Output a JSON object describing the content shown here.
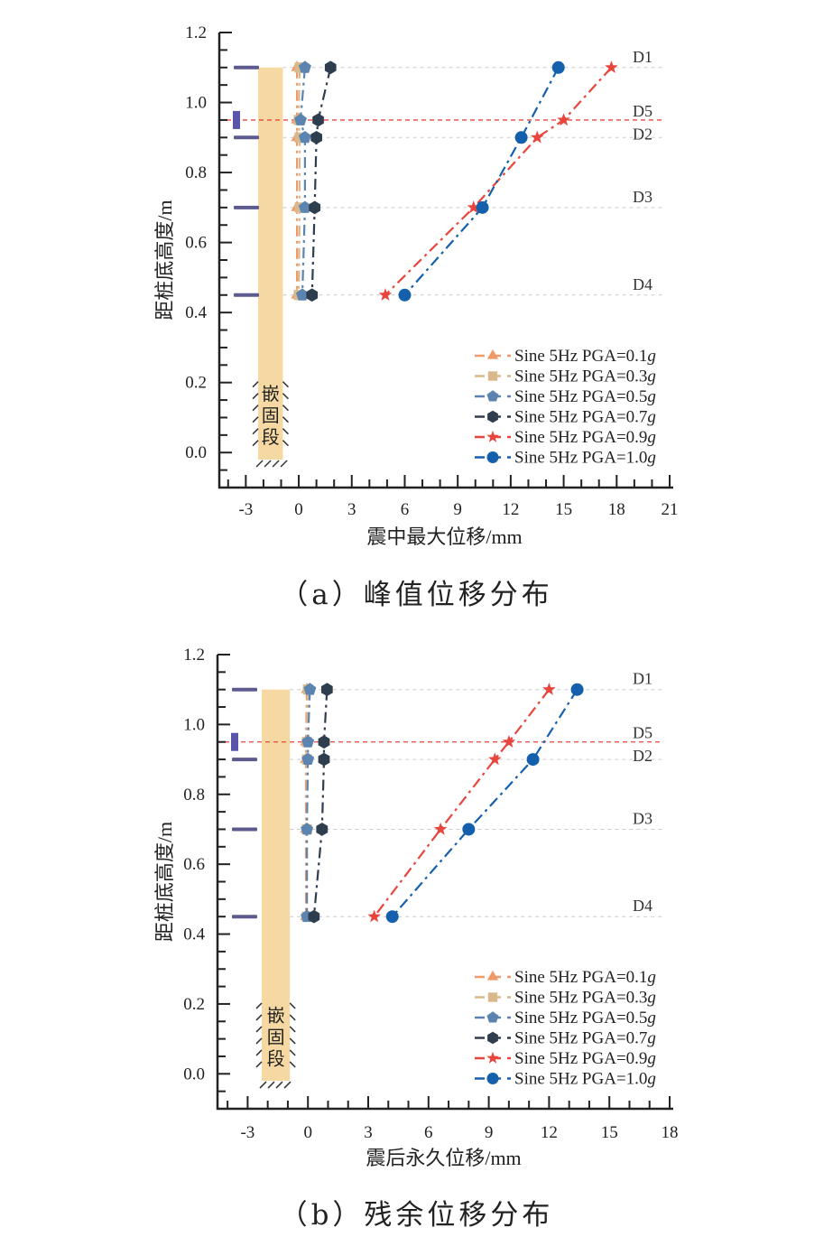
{
  "chart_data": [
    {
      "type": "line",
      "caption": "（a）峰值位移分布",
      "xlabel": "震中最大位移/mm",
      "ylabel": "距桩底高度/m",
      "xlim": [
        -4.5,
        21
      ],
      "ylim": [
        -0.1,
        1.2
      ],
      "xticks": [
        -3,
        0,
        3,
        6,
        9,
        12,
        15,
        18,
        21
      ],
      "yticks": [
        0.0,
        0.2,
        0.4,
        0.6,
        0.8,
        1.0,
        1.2
      ],
      "ytick_labels": [
        "0.0",
        "0.2",
        "0.4",
        "0.6",
        "0.8",
        "1.0",
        "1.2"
      ],
      "heights": [
        1.1,
        0.95,
        0.9,
        0.7,
        0.45
      ],
      "sensors": [
        {
          "name": "D1",
          "y": 1.1
        },
        {
          "name": "D5",
          "y": 0.95
        },
        {
          "name": "D2",
          "y": 0.9
        },
        {
          "name": "D3",
          "y": 0.7
        },
        {
          "name": "D4",
          "y": 0.45
        }
      ],
      "embed_label": [
        "嵌",
        "固",
        "段"
      ],
      "legend_position": "bottom-right",
      "series": [
        {
          "name": "Sine 5Hz PGA=0.1",
          "unit": "g",
          "marker": "triangle",
          "color": "#EE9A6B",
          "values": [
            -0.1,
            -0.1,
            -0.1,
            -0.1,
            -0.1
          ]
        },
        {
          "name": "Sine 5Hz PGA=0.3",
          "unit": "g",
          "marker": "square",
          "color": "#D9B98C",
          "values": [
            0.05,
            0.0,
            0.05,
            0.05,
            0.0
          ]
        },
        {
          "name": "Sine 5Hz PGA=0.5",
          "unit": "g",
          "marker": "pentagon",
          "color": "#5B84B1",
          "values": [
            0.35,
            0.1,
            0.35,
            0.35,
            0.2
          ]
        },
        {
          "name": "Sine 5Hz PGA=0.7",
          "unit": "g",
          "marker": "hexagon",
          "color": "#2F3E4E",
          "values": [
            1.8,
            1.1,
            1.0,
            0.9,
            0.75
          ]
        },
        {
          "name": "Sine 5Hz PGA=0.9",
          "unit": "g",
          "marker": "star",
          "color": "#E8453C",
          "values": [
            17.7,
            15.0,
            13.5,
            9.9,
            4.9
          ]
        },
        {
          "name": "Sine 5Hz PGA=1.0",
          "unit": "g",
          "marker": "circle",
          "color": "#1560AC",
          "values": [
            14.7,
            null,
            12.6,
            10.4,
            6.0
          ]
        }
      ]
    },
    {
      "type": "line",
      "caption": "（b）残余位移分布",
      "xlabel": "震后永久位移/mm",
      "ylabel": "距桩底高度/m",
      "xlim": [
        -4.5,
        18
      ],
      "ylim": [
        -0.1,
        1.2
      ],
      "xticks": [
        -3,
        0,
        3,
        6,
        9,
        12,
        15,
        18
      ],
      "yticks": [
        0.0,
        0.2,
        0.4,
        0.6,
        0.8,
        1.0,
        1.2
      ],
      "ytick_labels": [
        "0.0",
        "0.2",
        "0.4",
        "0.6",
        "0.8",
        "1.0",
        "1.2"
      ],
      "heights": [
        1.1,
        0.95,
        0.9,
        0.7,
        0.45
      ],
      "sensors": [
        {
          "name": "D1",
          "y": 1.1
        },
        {
          "name": "D5",
          "y": 0.95
        },
        {
          "name": "D2",
          "y": 0.9
        },
        {
          "name": "D3",
          "y": 0.7
        },
        {
          "name": "D4",
          "y": 0.45
        }
      ],
      "embed_label": [
        "嵌",
        "固",
        "段"
      ],
      "legend_position": "bottom-right",
      "series": [
        {
          "name": "Sine 5Hz PGA=0.1",
          "unit": "g",
          "marker": "triangle",
          "color": "#EE9A6B",
          "values": [
            -0.05,
            -0.1,
            -0.1,
            -0.1,
            -0.1
          ]
        },
        {
          "name": "Sine 5Hz PGA=0.3",
          "unit": "g",
          "marker": "square",
          "color": "#D9B98C",
          "values": [
            0.0,
            -0.05,
            -0.05,
            -0.05,
            -0.05
          ]
        },
        {
          "name": "Sine 5Hz PGA=0.5",
          "unit": "g",
          "marker": "pentagon",
          "color": "#5B84B1",
          "values": [
            0.1,
            0.0,
            0.0,
            -0.05,
            -0.05
          ]
        },
        {
          "name": "Sine 5Hz PGA=0.7",
          "unit": "g",
          "marker": "hexagon",
          "color": "#2F3E4E",
          "values": [
            0.95,
            0.8,
            0.8,
            0.7,
            0.3
          ]
        },
        {
          "name": "Sine 5Hz PGA=0.9",
          "unit": "g",
          "marker": "star",
          "color": "#E8453C",
          "values": [
            12.0,
            10.0,
            9.3,
            6.6,
            3.3
          ]
        },
        {
          "name": "Sine 5Hz PGA=1.0",
          "unit": "g",
          "marker": "circle",
          "color": "#1560AC",
          "values": [
            13.4,
            null,
            11.2,
            8.0,
            4.2
          ]
        }
      ]
    }
  ]
}
